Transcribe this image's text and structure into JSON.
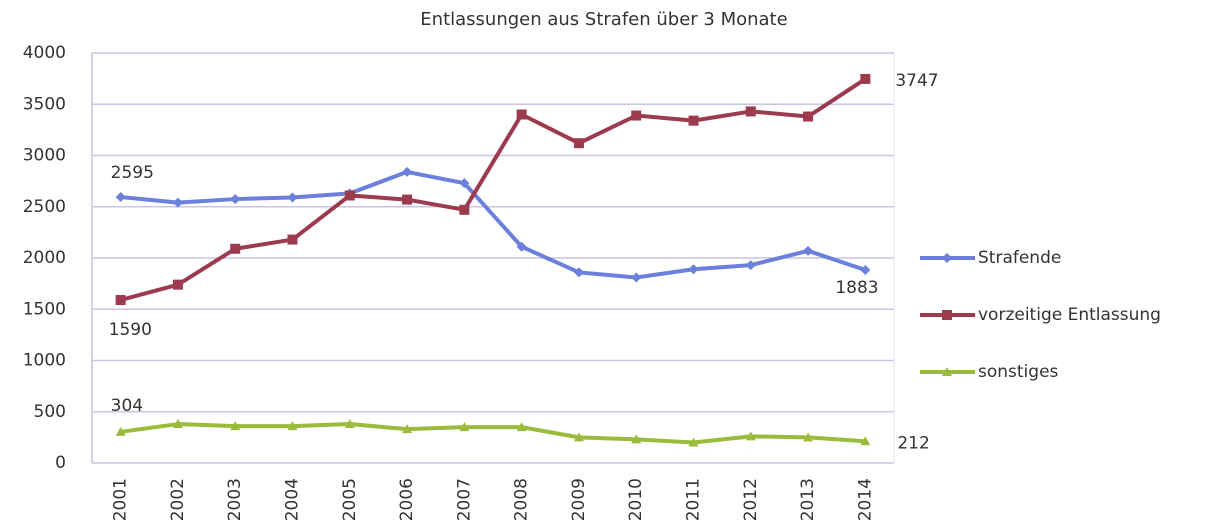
{
  "chart_data": {
    "type": "line",
    "title": "Entlassungen aus Strafen über 3 Monate",
    "categories": [
      "2001",
      "2002",
      "2003",
      "2004",
      "2005",
      "2006",
      "2007",
      "2008",
      "2009",
      "2010",
      "2011",
      "2012",
      "2013",
      "2014"
    ],
    "series": [
      {
        "name": "Strafende",
        "color": "#6b7fdc",
        "marker": "diamond",
        "label_color": "#5a6b8c",
        "values": [
          2595,
          2540,
          2575,
          2590,
          2630,
          2840,
          2730,
          2110,
          1860,
          1810,
          1890,
          1930,
          2070,
          1883
        ]
      },
      {
        "name": "vorzeitige Entlassung",
        "color": "#9c3a4e",
        "marker": "square",
        "label_color": "#c4506c",
        "values": [
          1590,
          1740,
          2090,
          2180,
          2610,
          2570,
          2470,
          3400,
          3120,
          3390,
          3340,
          3430,
          3380,
          3747
        ]
      },
      {
        "name": "sonstiges",
        "color": "#9bbb3c",
        "marker": "triangle",
        "label_color": "#a6a465",
        "values": [
          304,
          380,
          360,
          360,
          380,
          330,
          350,
          350,
          250,
          230,
          200,
          260,
          250,
          212
        ]
      }
    ],
    "ylim": [
      0,
      4000
    ],
    "yticks": [
      0,
      500,
      1000,
      1500,
      2000,
      2500,
      3000,
      3500,
      4000
    ],
    "grid": true,
    "legend": "right"
  }
}
